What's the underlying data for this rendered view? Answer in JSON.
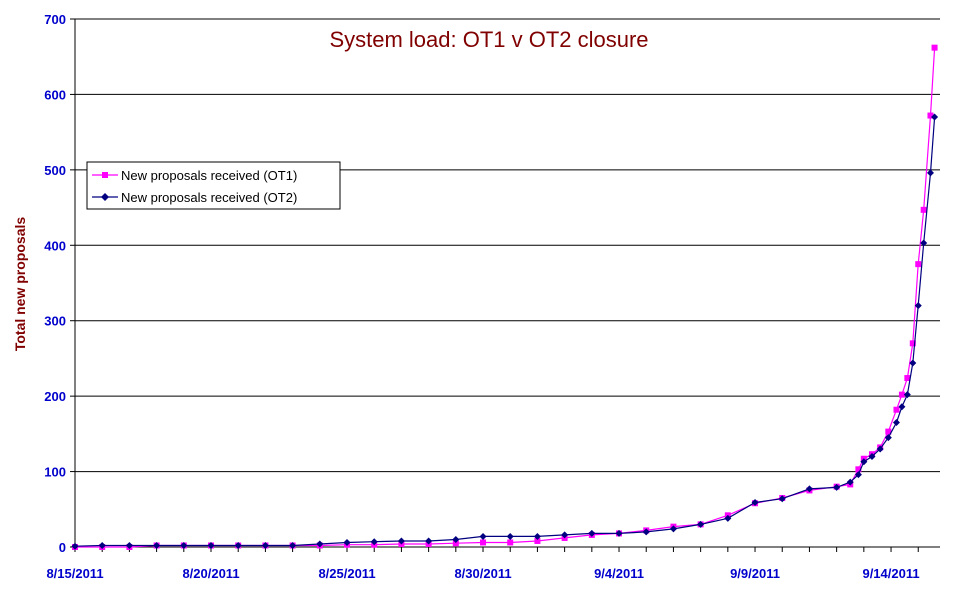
{
  "chart_data": {
    "type": "line",
    "title": "System load: OT1 v OT2 closure",
    "xlabel": "",
    "ylabel": "Total new proposals",
    "ylim": [
      0,
      700
    ],
    "yticks": [
      0,
      100,
      200,
      300,
      400,
      500,
      600,
      700
    ],
    "xlim": [
      0,
      31.8
    ],
    "x_tick_labels": [
      "8/15/2011",
      "8/20/2011",
      "8/25/2011",
      "8/30/2011",
      "9/4/2011",
      "9/9/2011",
      "9/14/2011"
    ],
    "x_tick_values": [
      0,
      5,
      10,
      15,
      20,
      25,
      30
    ],
    "grid": "horizontal",
    "legend_position": "left",
    "series": [
      {
        "name": "New proposals received (OT1)",
        "color": "#ff00ff",
        "marker": "square",
        "x": [
          0,
          1,
          2,
          3,
          4,
          5,
          6,
          7,
          8,
          9,
          10,
          11,
          12,
          13,
          14,
          15,
          16,
          17,
          18,
          19,
          20,
          21,
          22,
          23,
          24,
          25,
          26,
          27,
          28,
          28.5,
          28.8,
          29.0,
          29.3,
          29.6,
          29.9,
          30.2,
          30.4,
          30.6,
          30.8,
          31.0,
          31.2,
          31.45,
          31.6
        ],
        "y": [
          0,
          0,
          0,
          2,
          2,
          2,
          2,
          2,
          2,
          2,
          3,
          3,
          4,
          4,
          5,
          6,
          6,
          8,
          12,
          16,
          18,
          22,
          27,
          30,
          42,
          58,
          65,
          75,
          80,
          83,
          103,
          117,
          123,
          132,
          153,
          182,
          202,
          224,
          270,
          375,
          447,
          572,
          662
        ]
      },
      {
        "name": "New proposals received (OT2)",
        "color": "#000080",
        "marker": "diamond",
        "x": [
          0,
          1,
          2,
          3,
          4,
          5,
          6,
          7,
          8,
          9,
          10,
          11,
          12,
          13,
          14,
          15,
          16,
          17,
          18,
          19,
          20,
          21,
          22,
          23,
          24,
          25,
          26,
          27,
          28,
          28.5,
          28.8,
          29.0,
          29.3,
          29.6,
          29.9,
          30.2,
          30.4,
          30.6,
          30.8,
          31.0,
          31.2,
          31.45,
          31.6
        ],
        "y": [
          1,
          2,
          2,
          2,
          2,
          2,
          2,
          2,
          2,
          4,
          6,
          7,
          8,
          8,
          10,
          14,
          14,
          14,
          16,
          18,
          18,
          20,
          24,
          30,
          38,
          59,
          64,
          77,
          79,
          86,
          96,
          113,
          120,
          130,
          145,
          165,
          186,
          202,
          244,
          320,
          403,
          496,
          570
        ]
      }
    ]
  }
}
